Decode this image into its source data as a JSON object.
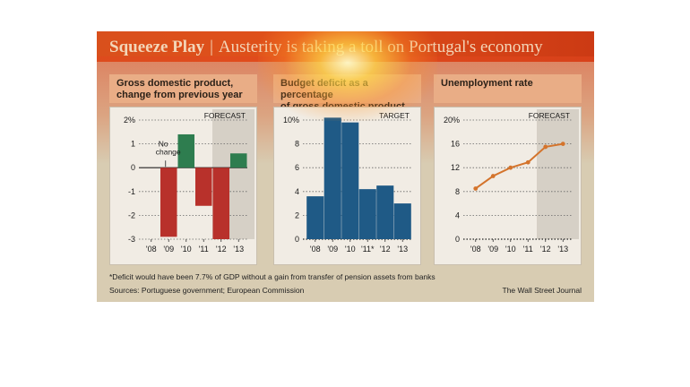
{
  "header": {
    "kicker": "Squeeze Play",
    "separator": "|",
    "headline": "Austerity is taking a toll on Portugal's economy"
  },
  "panels": [
    {
      "title_line1": "Gross domestic product,",
      "title_line2": "change from previous year"
    },
    {
      "title_line1": "Budget deficit as a percentage",
      "title_line2": "of gross domestic product"
    },
    {
      "title_line1": "Unemployment rate",
      "title_line2": ""
    }
  ],
  "footnote": "*Deficit would have been 7.7% of GDP without a gain from transfer of pension assets from banks",
  "sources": "Sources: Portuguese government; European Commission",
  "credit": "The Wall Street Journal",
  "colors": {
    "banner": "#e0501a",
    "panel_header": "#e9ad86",
    "gdp_positive": "#2e7d4f",
    "gdp_negative": "#b8312b",
    "deficit_bar": "#1f5a86",
    "unemployment_line": "#d4742c",
    "forecast_shade": "#d6d0c6"
  },
  "chart_data": [
    {
      "type": "bar",
      "categories": [
        "'08",
        "'09",
        "'10",
        "'11",
        "'12",
        "'13"
      ],
      "values": [
        0,
        -2.9,
        1.4,
        -1.6,
        -3.0,
        0.6
      ],
      "ylim": [
        -3,
        2
      ],
      "yticks": [
        -3,
        -2,
        -1,
        0,
        1,
        2
      ],
      "ytick_labels": [
        "-3",
        "-2",
        "-1",
        "0",
        "1",
        "2%"
      ],
      "shade_label": "FORECAST",
      "shade_from_index": 4,
      "annotation_line1": "No",
      "annotation_line2": "change",
      "annotation_target_index": 0
    },
    {
      "type": "bar",
      "categories": [
        "'08",
        "'09",
        "'10",
        "'11*",
        "'12",
        "'13"
      ],
      "values": [
        3.6,
        10.2,
        9.8,
        4.2,
        4.5,
        3.0
      ],
      "ylim": [
        0,
        10
      ],
      "yticks": [
        0,
        2,
        4,
        6,
        8,
        10
      ],
      "ytick_labels": [
        "0",
        "2",
        "4",
        "6",
        "8",
        "10%"
      ],
      "shade_label": "TARGET",
      "shade_from_index": 6
    },
    {
      "type": "line",
      "categories": [
        "'08",
        "'09",
        "'10",
        "'11",
        "'12",
        "'13"
      ],
      "values": [
        8.5,
        10.6,
        12.0,
        12.9,
        15.5,
        16.0
      ],
      "ylim": [
        0,
        20
      ],
      "yticks": [
        0,
        4,
        8,
        12,
        16,
        20
      ],
      "ytick_labels": [
        "0",
        "4",
        "8",
        "12",
        "16",
        "20%"
      ],
      "shade_label": "FORECAST",
      "shade_from_index": 4
    }
  ]
}
